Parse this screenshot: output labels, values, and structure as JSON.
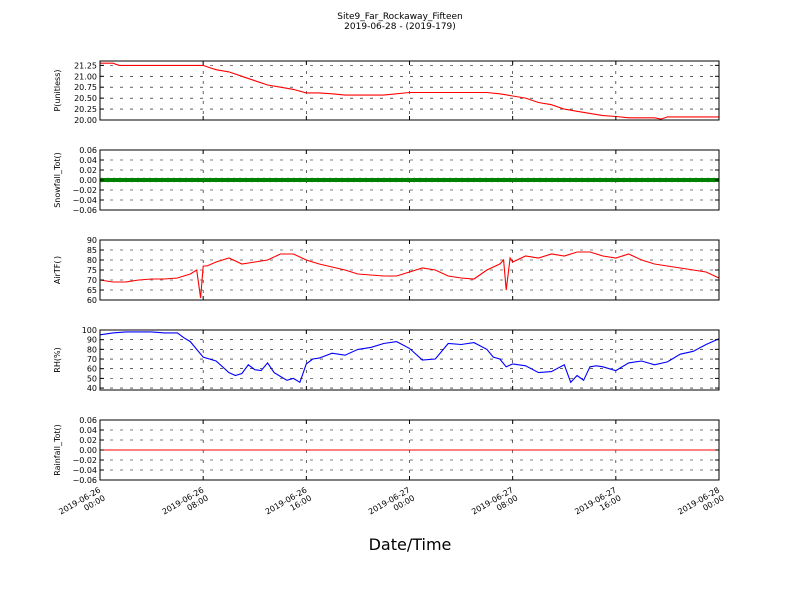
{
  "figure": {
    "title_line1": "Site9_Far_Rockaway_Fifteen",
    "title_line2": "2019-06-28 - (2019-179)",
    "xlabel": "Date/Time",
    "xtick_labels": [
      [
        "2019-06-26",
        "00:00"
      ],
      [
        "2019-06-26",
        "08:00"
      ],
      [
        "2019-06-26",
        "16:00"
      ],
      [
        "2019-06-27",
        "00:00"
      ],
      [
        "2019-06-27",
        "08:00"
      ],
      [
        "2019-06-27",
        "16:00"
      ],
      [
        "2019-06-28",
        "00:00"
      ]
    ]
  },
  "chart_data": [
    {
      "type": "line",
      "ylabel": "P(unitless)",
      "ylim": [
        20.0,
        21.35
      ],
      "yticks": [
        20.0,
        20.25,
        20.5,
        20.75,
        21.0,
        21.25
      ],
      "ytick_labels": [
        "20.00",
        "20.25",
        "20.50",
        "20.75",
        "21.00",
        "21.25"
      ],
      "xlim_hours": [
        0,
        48
      ],
      "grid": true,
      "color": "#ff0000",
      "x": [
        0,
        1,
        1.5,
        2,
        4,
        6,
        8,
        8.5,
        9,
        10,
        11,
        12,
        13,
        14,
        15,
        16,
        17,
        18,
        19,
        20,
        22,
        24,
        26,
        28,
        30,
        31,
        32,
        33,
        34,
        35,
        36,
        37,
        38,
        39,
        40,
        41,
        42,
        43,
        43.5,
        44,
        45,
        46,
        47,
        48
      ],
      "values": [
        21.3,
        21.3,
        21.25,
        21.25,
        21.25,
        21.25,
        21.25,
        21.2,
        21.15,
        21.1,
        21.0,
        20.9,
        20.8,
        20.75,
        20.7,
        20.62,
        20.62,
        20.6,
        20.57,
        20.57,
        20.57,
        20.63,
        20.63,
        20.63,
        20.63,
        20.6,
        20.55,
        20.5,
        20.4,
        20.35,
        20.25,
        20.2,
        20.15,
        20.1,
        20.08,
        20.05,
        20.05,
        20.05,
        20.02,
        20.07,
        20.07,
        20.07,
        20.07,
        20.07
      ]
    },
    {
      "type": "line",
      "ylabel": "Snowfall_Tot()",
      "ylim": [
        -0.06,
        0.06
      ],
      "yticks": [
        -0.06,
        -0.04,
        -0.02,
        0.0,
        0.02,
        0.04,
        0.06
      ],
      "ytick_labels": [
        "−0.06",
        "−0.04",
        "−0.02",
        "0.00",
        "0.02",
        "0.04",
        "0.06"
      ],
      "xlim_hours": [
        0,
        48
      ],
      "grid": true,
      "color": "#008000",
      "marker": "dot",
      "x": [
        0,
        48
      ],
      "values": [
        0,
        0
      ]
    },
    {
      "type": "line",
      "ylabel": "AirTF( )",
      "ylim": [
        60,
        90
      ],
      "yticks": [
        60,
        65,
        70,
        75,
        80,
        85,
        90
      ],
      "ytick_labels": [
        "60",
        "65",
        "70",
        "75",
        "80",
        "85",
        "90"
      ],
      "xlim_hours": [
        0,
        48
      ],
      "grid": true,
      "color": "#ff0000",
      "x": [
        0,
        1,
        2,
        3,
        4,
        5,
        6,
        7,
        7.5,
        7.8,
        8,
        8.3,
        9,
        10,
        11,
        12,
        13,
        14,
        15,
        16,
        17,
        18,
        19,
        20,
        21,
        22,
        23,
        24,
        25,
        26,
        27,
        28,
        29,
        30,
        31,
        31.3,
        31.5,
        31.8,
        32,
        33,
        34,
        35,
        36,
        37,
        38,
        39,
        40,
        41,
        42,
        43,
        44,
        45,
        46,
        47,
        48
      ],
      "values": [
        70,
        69,
        69,
        70,
        70.5,
        70.5,
        71,
        73,
        75,
        61,
        77,
        77,
        79,
        81,
        78,
        79,
        80,
        83,
        83,
        80,
        78,
        76.5,
        75,
        73,
        72.5,
        72,
        72,
        74,
        76,
        75,
        72,
        71,
        70.5,
        75,
        78,
        80,
        65,
        81,
        79,
        82,
        81,
        83,
        82,
        84,
        84,
        82,
        81,
        83,
        80,
        78,
        77,
        76,
        75,
        74,
        71
      ]
    },
    {
      "type": "line",
      "ylabel": "RH(%)",
      "ylim": [
        38,
        100
      ],
      "yticks": [
        40,
        50,
        60,
        70,
        80,
        90,
        100
      ],
      "ytick_labels": [
        "40",
        "50",
        "60",
        "70",
        "80",
        "90",
        "100"
      ],
      "xlim_hours": [
        0,
        48
      ],
      "grid": true,
      "color": "#0000ff",
      "x": [
        0,
        1,
        2,
        3,
        4,
        5,
        6,
        6.5,
        7,
        7.5,
        8,
        9,
        10,
        10.5,
        11,
        11.5,
        12,
        12.5,
        13,
        13.5,
        14,
        14.5,
        15,
        15.5,
        16,
        16.5,
        17,
        18,
        19,
        20,
        21,
        22,
        23,
        24,
        25,
        26,
        27,
        28,
        29,
        30,
        30.5,
        31,
        31.5,
        32,
        33,
        34,
        35,
        36,
        36.5,
        37,
        37.5,
        38,
        38.5,
        39,
        40,
        41,
        42,
        43,
        44,
        45,
        46,
        47,
        48
      ],
      "values": [
        95,
        97,
        98,
        98,
        98,
        97,
        97,
        92,
        88,
        80,
        72,
        68,
        56,
        53,
        55,
        64,
        59,
        58,
        66,
        56,
        52,
        48,
        50,
        46,
        65,
        70,
        71,
        76,
        74,
        80,
        82,
        86,
        88,
        81,
        69,
        70,
        86,
        85,
        87,
        80,
        72,
        70,
        62,
        65,
        63,
        56,
        57,
        64,
        46,
        53,
        48,
        62,
        63,
        62,
        58,
        66,
        68,
        64,
        67,
        75,
        78,
        85,
        91
      ]
    },
    {
      "type": "line",
      "ylabel": "Rainfall_Tot()",
      "ylim": [
        -0.06,
        0.06
      ],
      "yticks": [
        -0.06,
        -0.04,
        -0.02,
        0.0,
        0.02,
        0.04,
        0.06
      ],
      "ytick_labels": [
        "−0.06",
        "−0.04",
        "−0.02",
        "0.00",
        "0.02",
        "0.04",
        "0.06"
      ],
      "xlim_hours": [
        0,
        48
      ],
      "grid": true,
      "color": "#ff0000",
      "x": [
        0,
        48
      ],
      "values": [
        0,
        0
      ]
    }
  ]
}
